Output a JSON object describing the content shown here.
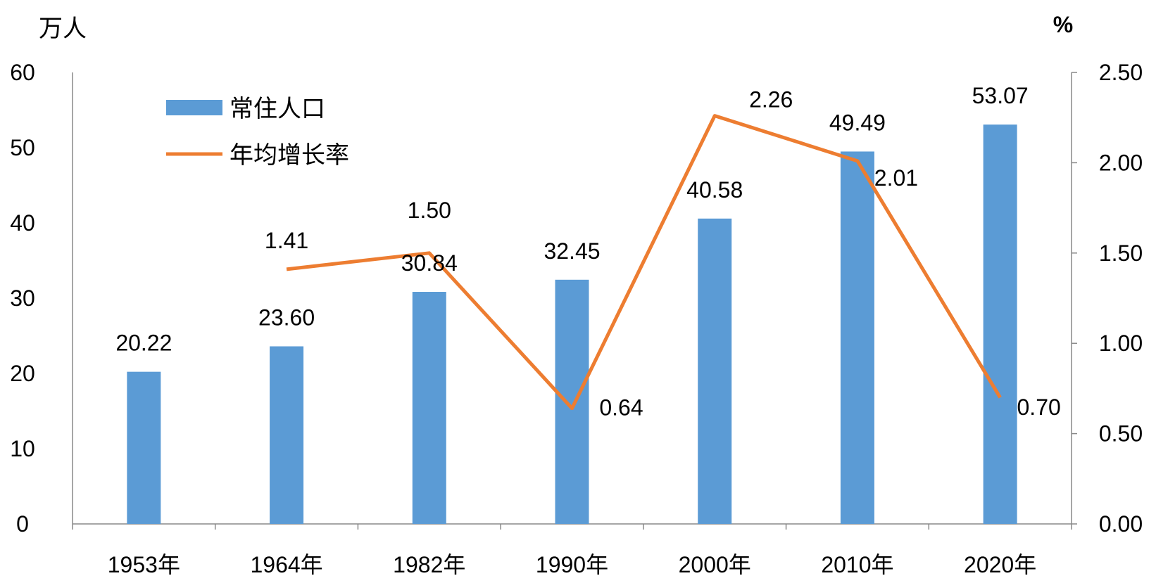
{
  "chart_data": {
    "type": "bar+line",
    "categories": [
      "1953年",
      "1964年",
      "1982年",
      "1990年",
      "2000年",
      "2010年",
      "2020年"
    ],
    "left_axis": {
      "unit": "万人",
      "ylim": [
        0,
        60
      ],
      "ticks": [
        "0",
        "10",
        "20",
        "30",
        "40",
        "50",
        "60"
      ]
    },
    "right_axis": {
      "unit": "%",
      "ylim": [
        0,
        2.5
      ],
      "ticks": [
        "0.00",
        "0.50",
        "1.00",
        "1.50",
        "2.00",
        "2.50"
      ]
    },
    "series": [
      {
        "name": "常住人口",
        "type": "bar",
        "axis": "left",
        "color": "#5B9BD5",
        "values": [
          20.22,
          23.6,
          30.84,
          32.45,
          40.58,
          49.49,
          53.07
        ],
        "labels": [
          "20.22",
          "23.60",
          "30.84",
          "32.45",
          "40.58",
          "49.49",
          "53.07"
        ]
      },
      {
        "name": "年均增长率",
        "type": "line",
        "axis": "right",
        "color": "#ED7D31",
        "values": [
          null,
          1.41,
          1.5,
          0.64,
          2.26,
          2.01,
          0.7
        ],
        "labels": [
          "",
          "1.41",
          "1.50",
          "0.64",
          "2.26",
          "2.01",
          "0.70"
        ]
      }
    ],
    "legend": "top-left",
    "grid": false
  }
}
